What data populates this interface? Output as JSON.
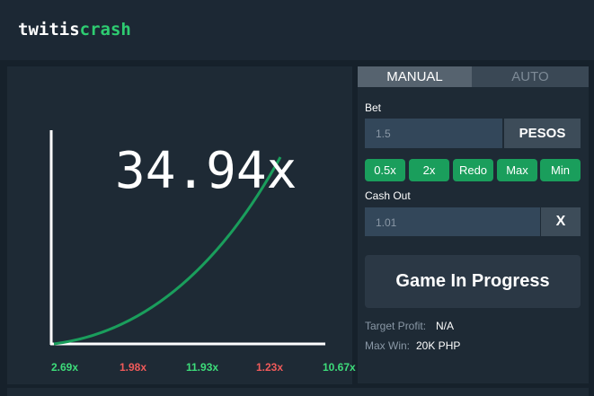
{
  "header": {
    "logo_white": "twitis",
    "logo_green": "crash"
  },
  "game": {
    "multiplier": "34.94x",
    "history": [
      {
        "text": "2.69x",
        "color": "#3ddc7a"
      },
      {
        "text": "1.98x",
        "color": "#f05a5a"
      },
      {
        "text": "11.93x",
        "color": "#3ddc7a"
      },
      {
        "text": "1.23x",
        "color": "#f05a5a"
      },
      {
        "text": "10.67x",
        "color": "#3ddc7a"
      }
    ]
  },
  "controls": {
    "tabs": [
      "MANUAL",
      "AUTO"
    ],
    "bet_label": "Bet",
    "bet_value": "1.5",
    "currency": "PESOS",
    "quick_buttons": [
      "0.5x",
      "2x",
      "Redo",
      "Max",
      "Min"
    ],
    "cashout_label": "Cash Out",
    "cashout_value": "1.01",
    "clear_button": "X",
    "status": "Game In Progress",
    "target_profit_label": "Target Profit:",
    "target_profit_value": "N/A",
    "max_win_label": "Max Win:",
    "max_win_value": "20K PHP"
  }
}
